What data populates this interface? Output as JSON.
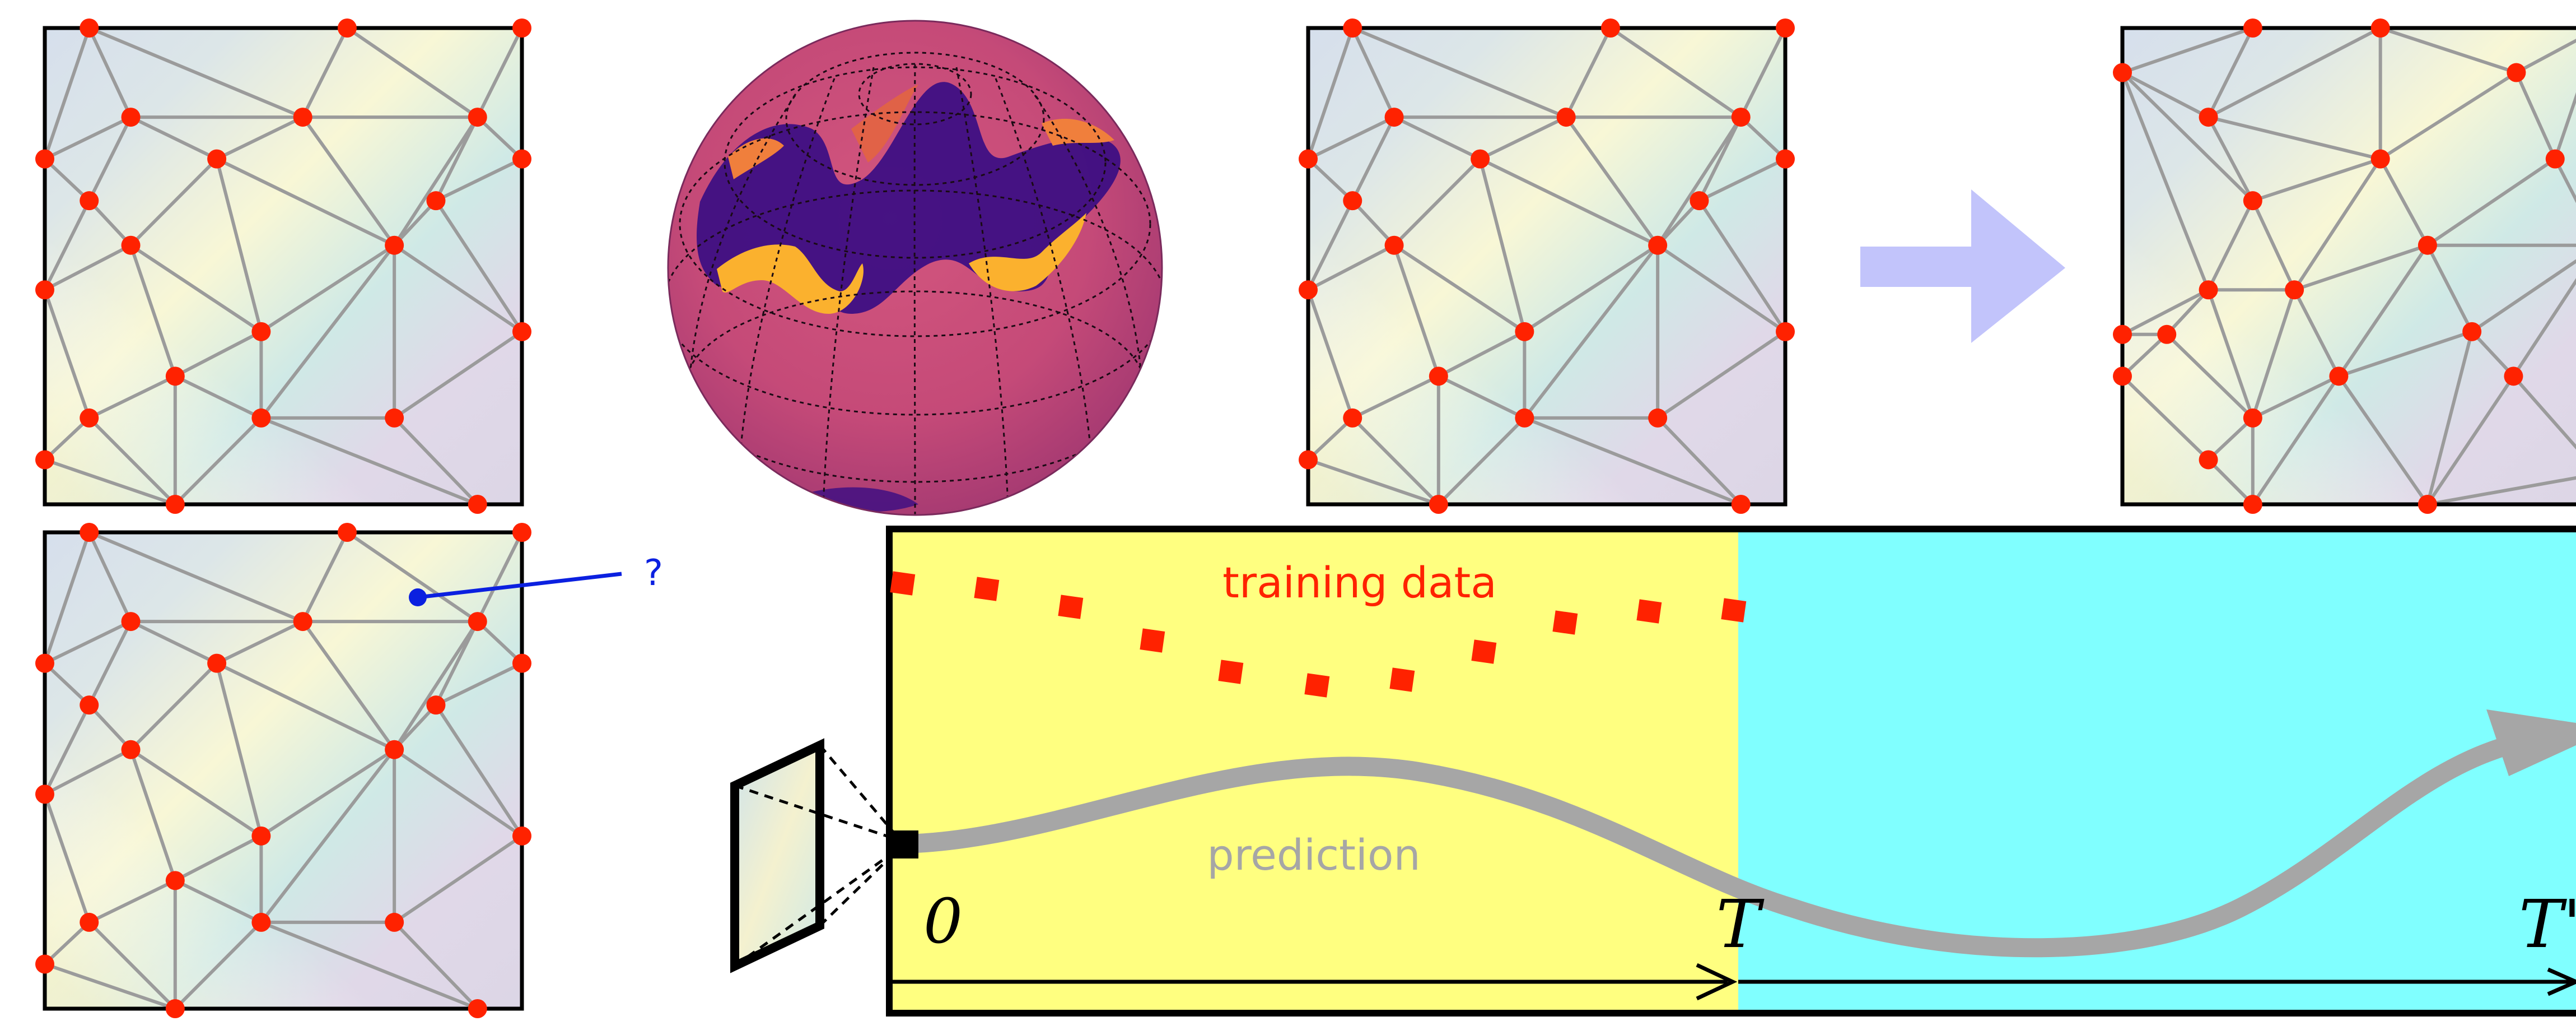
{
  "labels": {
    "training_data": "training data",
    "prediction": "prediction",
    "query_mark": "?",
    "t_zero": "0",
    "t_train": "T",
    "t_end": "T'"
  },
  "colors": {
    "mesh_edge": "#9b9b9b",
    "mesh_node": "#ff2200",
    "training_region": "#ffff80",
    "forecast_region": "#80ffff",
    "training_points": "#ff2200",
    "prediction_curve": "#a6a6a6",
    "query_marker": "#0b20e0",
    "transfer_arrow": "#c2c4fb",
    "sphere_base": "#c54a78",
    "sphere_hot": "#fbb12e",
    "sphere_cold": "#3a0d83"
  },
  "icons": {
    "mesh_panels": "triangulated-mesh",
    "globe": "sphere-field-plot",
    "transfer_arrow": "right-arrow",
    "camera": "camera-frustum-icon"
  }
}
